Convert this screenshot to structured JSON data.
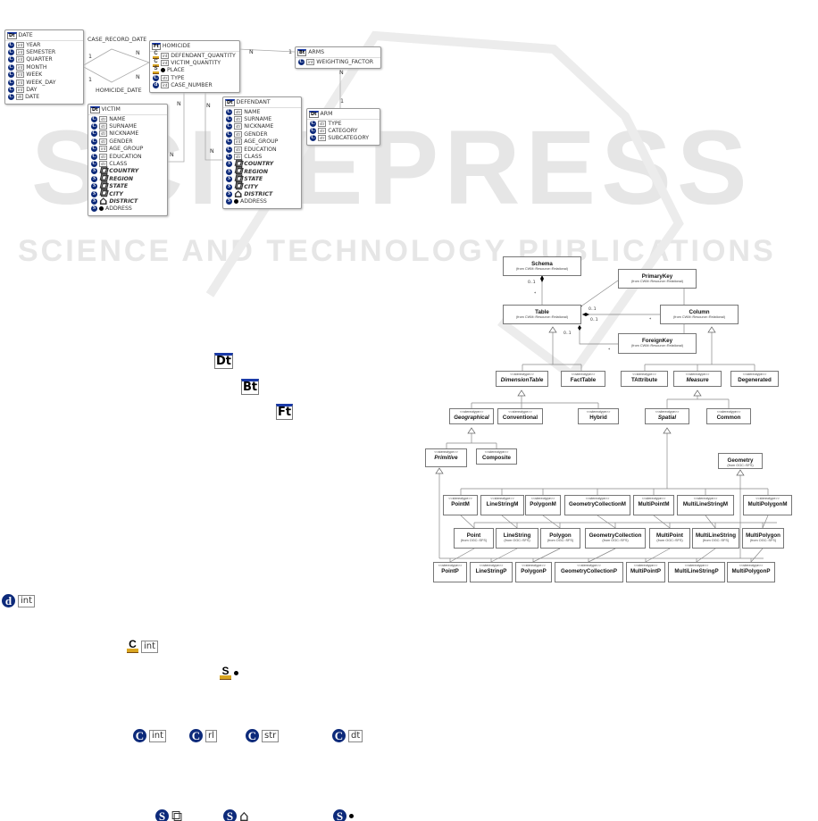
{
  "watermark": {
    "brand": "SCITEPRESS",
    "tagline": "SCIENCE AND TECHNOLOGY PUBLICATIONS"
  },
  "er_diagram": {
    "tables": [
      {
        "id": "date",
        "type_icon": "Dt",
        "name": "DATE",
        "rows": [
          {
            "k": "C",
            "t": "int",
            "n": "YEAR"
          },
          {
            "k": "C",
            "t": "int",
            "n": "SEMESTER"
          },
          {
            "k": "C",
            "t": "int",
            "n": "QUARTER"
          },
          {
            "k": "C",
            "t": "int",
            "n": "MONTH"
          },
          {
            "k": "C",
            "t": "int",
            "n": "WEEK"
          },
          {
            "k": "C",
            "t": "int",
            "n": "WEEK_DAY"
          },
          {
            "k": "C",
            "t": "int",
            "n": "DAY"
          },
          {
            "k": "C",
            "t": "dt",
            "n": "DATE"
          }
        ]
      },
      {
        "id": "homicide",
        "type_icon": "Ft",
        "name": "HOMICIDE",
        "rows": [
          {
            "k": "Cm",
            "t": "int",
            "n": "DEFENDANT_QUANTITY"
          },
          {
            "k": "Cm",
            "t": "int",
            "n": "VICTIM_QUANTITY"
          },
          {
            "k": "Sm",
            "t": "point",
            "n": "PLACE"
          },
          {
            "k": "C",
            "t": "str",
            "n": "TYPE"
          },
          {
            "k": "d",
            "t": "int",
            "n": "CASE_NUMBER"
          }
        ]
      },
      {
        "id": "arms",
        "type_icon": "Bt",
        "name": "ARMS",
        "rows": [
          {
            "k": "C",
            "t": "int",
            "n": "WEIGHTING_FACTOR"
          }
        ]
      },
      {
        "id": "victim",
        "type_icon": "Dt",
        "name": "VICTIM",
        "rows": [
          {
            "k": "C",
            "t": "str",
            "n": "NAME"
          },
          {
            "k": "C",
            "t": "str",
            "n": "SURNAME"
          },
          {
            "k": "C",
            "t": "str",
            "n": "NICKNAME"
          },
          {
            "k": "C",
            "t": "str",
            "n": "GENDER"
          },
          {
            "k": "C",
            "t": "int",
            "n": "AGE_GROUP"
          },
          {
            "k": "C",
            "t": "str",
            "n": "EDUCATION"
          },
          {
            "k": "C",
            "t": "str",
            "n": "CLASS"
          },
          {
            "k": "S",
            "t": "polys",
            "n": "COUNTRY",
            "b": true
          },
          {
            "k": "S",
            "t": "polys",
            "n": "REGION",
            "b": true
          },
          {
            "k": "S",
            "t": "polys",
            "n": "STATE",
            "b": true
          },
          {
            "k": "S",
            "t": "polys",
            "n": "CITY",
            "b": true
          },
          {
            "k": "S",
            "t": "poly",
            "n": "DISTRICT",
            "b": true
          },
          {
            "k": "S",
            "t": "point",
            "n": "ADDRESS"
          }
        ]
      },
      {
        "id": "defendant",
        "type_icon": "Dt",
        "name": "DEFENDANT",
        "rows": [
          {
            "k": "C",
            "t": "str",
            "n": "NAME"
          },
          {
            "k": "C",
            "t": "str",
            "n": "SURNAME"
          },
          {
            "k": "C",
            "t": "str",
            "n": "NICKNAME"
          },
          {
            "k": "C",
            "t": "str",
            "n": "GENDER"
          },
          {
            "k": "C",
            "t": "int",
            "n": "AGE_GROUP"
          },
          {
            "k": "C",
            "t": "str",
            "n": "EDUCATION"
          },
          {
            "k": "C",
            "t": "str",
            "n": "CLASS"
          },
          {
            "k": "S",
            "t": "polys",
            "n": "COUNTRY",
            "b": true
          },
          {
            "k": "S",
            "t": "polys",
            "n": "REGION",
            "b": true
          },
          {
            "k": "S",
            "t": "polys",
            "n": "STATE",
            "b": true
          },
          {
            "k": "S",
            "t": "polys",
            "n": "CITY",
            "b": true
          },
          {
            "k": "S",
            "t": "poly",
            "n": "DISTRICT",
            "b": true
          },
          {
            "k": "S",
            "t": "point",
            "n": "ADDRESS"
          }
        ]
      },
      {
        "id": "arm",
        "type_icon": "Dt",
        "name": "ARM",
        "rows": [
          {
            "k": "C",
            "t": "str",
            "n": "TYPE"
          },
          {
            "k": "C",
            "t": "str",
            "n": "CATEGORY"
          },
          {
            "k": "C",
            "t": "str",
            "n": "SUBCATEGORY"
          }
        ]
      }
    ],
    "labels": {
      "case_record_date": "CASE_RECORD_DATE",
      "homicide_date": "HOMICIDE_DATE",
      "one": "1",
      "many": "N"
    }
  },
  "uml_diagram": {
    "stereotype": "<<stereotype>>",
    "classes": [
      {
        "id": "schema",
        "name": "Schema",
        "from": "(from CWM::Resource::Relational)"
      },
      {
        "id": "primarykey",
        "name": "PrimaryKey",
        "from": "(from CWM::Resource::Relational)"
      },
      {
        "id": "table",
        "name": "Table",
        "from": "(from CWM::Resource::Relational)"
      },
      {
        "id": "column",
        "name": "Column",
        "from": "(from CWM::Resource::Relational)"
      },
      {
        "id": "foreignkey",
        "name": "ForeignKey",
        "from": "(from CWM::Resource::Relational)"
      },
      {
        "id": "dimensiontable",
        "name": "DimensionTable",
        "st": true,
        "it": true
      },
      {
        "id": "facttable",
        "name": "FactTable",
        "st": true
      },
      {
        "id": "tattribute",
        "name": "TAttribute",
        "st": true
      },
      {
        "id": "measure",
        "name": "Measure",
        "st": true,
        "it": true
      },
      {
        "id": "degenerated",
        "name": "Degenerated",
        "st": true
      },
      {
        "id": "geographical",
        "name": "Geographical",
        "st": true,
        "it": true
      },
      {
        "id": "conventional",
        "name": "Conventional",
        "st": true
      },
      {
        "id": "hybrid",
        "name": "Hybrid",
        "st": true
      },
      {
        "id": "spatial",
        "name": "Spatial",
        "st": true,
        "it": true
      },
      {
        "id": "common",
        "name": "Common",
        "st": true
      },
      {
        "id": "primitive",
        "name": "Primitive",
        "st": true,
        "it": true
      },
      {
        "id": "composite",
        "name": "Composite",
        "st": true
      },
      {
        "id": "geometry",
        "name": "Geometry",
        "from": "(from OGC::SFS)"
      },
      {
        "id": "pointm",
        "name": "PointM",
        "st": true
      },
      {
        "id": "linestringm",
        "name": "LineStringM",
        "st": true
      },
      {
        "id": "polygonm",
        "name": "PolygonM",
        "st": true
      },
      {
        "id": "geometrycollectionm",
        "name": "GeometryCollectionM",
        "st": true
      },
      {
        "id": "multipointm",
        "name": "MultiPointM",
        "st": true
      },
      {
        "id": "multilinestringm",
        "name": "MultiLineStringM",
        "st": true
      },
      {
        "id": "multipolygonm",
        "name": "MultiPolygonM",
        "st": true
      },
      {
        "id": "point",
        "name": "Point",
        "from": "(from OGC::SFS)"
      },
      {
        "id": "linestring",
        "name": "LineString",
        "from": "(from OGC::SFS)"
      },
      {
        "id": "polygon",
        "name": "Polygon",
        "from": "(from OGC::SFS)"
      },
      {
        "id": "geometrycollection",
        "name": "GeometryCollection",
        "from": "(from OGC::SFS)"
      },
      {
        "id": "multipoint",
        "name": "MultiPoint",
        "from": "(from OGC::SFS)"
      },
      {
        "id": "multilinestring",
        "name": "MultiLineString",
        "from": "(from OGC::SFS)"
      },
      {
        "id": "multipolygon",
        "name": "MultiPolygon",
        "from": "(from OGC::SFS)"
      },
      {
        "id": "pointp",
        "name": "PointP",
        "st": true
      },
      {
        "id": "linestringp",
        "name": "LineStringP",
        "st": true
      },
      {
        "id": "polygonp",
        "name": "PolygonP",
        "st": true
      },
      {
        "id": "geometrycollectionp",
        "name": "GeometryCollectionP",
        "st": true
      },
      {
        "id": "multipointp",
        "name": "MultiPointP",
        "st": true
      },
      {
        "id": "multilinestringp",
        "name": "MultiLineStringP",
        "st": true
      },
      {
        "id": "multipolygonp",
        "name": "MultiPolygonP",
        "st": true
      }
    ],
    "multiplicities": {
      "zero_one": "0..1",
      "star": "*"
    }
  },
  "legend_icons": {
    "table_icons": [
      "Dt",
      "Bt",
      "Ft"
    ],
    "descriptor": {
      "k": "d",
      "t": "int"
    },
    "measure_int": {
      "k": "C",
      "t": "int"
    },
    "measure_point": {
      "k": "S"
    },
    "attribute_types": [
      "int",
      "rl",
      "str",
      "dt"
    ],
    "spatial_attrs": [
      "polys",
      "poly",
      "point"
    ]
  }
}
